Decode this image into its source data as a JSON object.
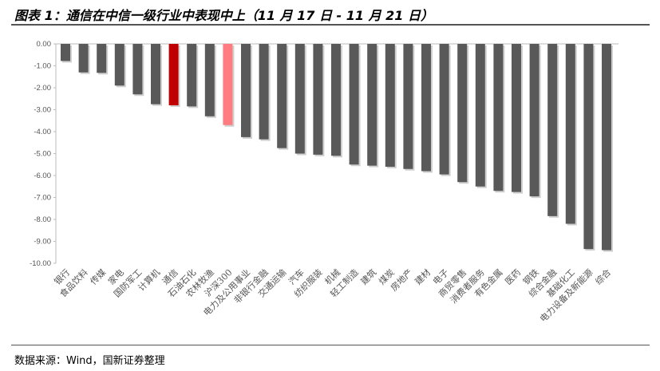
{
  "title": "图表 1：通信在中信一级行业中表现中上（11 月 17 日 - 11 月 21 日）",
  "source": "数据来源：Wind，国新证券整理",
  "chart_data": {
    "type": "bar",
    "title": "通信在中信一级行业中表现中上（11 月 17 日 - 11 月 21 日）",
    "xlabel": "",
    "ylabel": "",
    "ylim": [
      -10,
      0
    ],
    "yticks": [
      "0.00",
      "-1.00",
      "-2.00",
      "-3.00",
      "-4.00",
      "-5.00",
      "-6.00",
      "-7.00",
      "-8.00",
      "-9.00",
      "-10.00"
    ],
    "grid": false,
    "categories": [
      "银行",
      "食品饮料",
      "传媒",
      "家电",
      "国防军工",
      "计算机",
      "通信",
      "石油石化",
      "农林牧渔",
      "沪深300",
      "电力及公用事业",
      "非银行金融",
      "交通运输",
      "汽车",
      "纺织服装",
      "机械",
      "轻工制造",
      "建筑",
      "煤炭",
      "房地产",
      "建材",
      "电子",
      "商贸零售",
      "消费者服务",
      "有色金属",
      "医药",
      "钢铁",
      "综合金融",
      "基础化工",
      "电力设备及新能源",
      "综合"
    ],
    "values": [
      -0.78,
      -1.3,
      -1.32,
      -1.9,
      -2.3,
      -2.75,
      -2.8,
      -2.85,
      -3.3,
      -3.7,
      -4.25,
      -4.35,
      -4.75,
      -5.0,
      -5.05,
      -5.1,
      -5.5,
      -5.55,
      -5.6,
      -5.7,
      -5.8,
      -5.95,
      -6.3,
      -6.5,
      -6.7,
      -6.75,
      -6.95,
      -7.85,
      -8.2,
      -9.35,
      -9.4
    ],
    "colors": {
      "default": "#595959",
      "highlight": "#c00000",
      "benchmark": "#ff7c80"
    },
    "highlight": "通信",
    "benchmark": "沪深300"
  }
}
